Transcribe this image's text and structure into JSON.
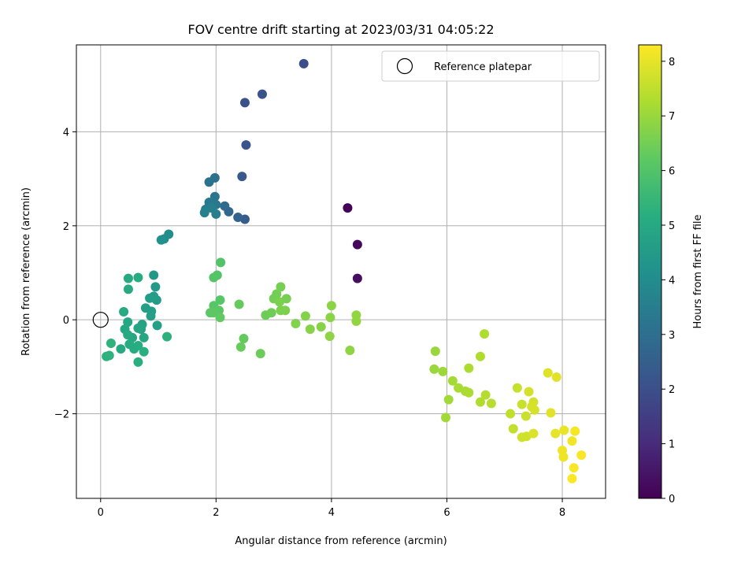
{
  "chart_data": {
    "type": "scatter",
    "title": "FOV centre drift starting at 2023/03/31 04:05:22",
    "xlabel": "Angular distance from reference (arcmin)",
    "ylabel": "Rotation from reference (arcmin)",
    "xlim": [
      -0.42,
      8.75
    ],
    "ylim": [
      -3.8,
      5.85
    ],
    "xticks": [
      0,
      2,
      4,
      6,
      8
    ],
    "yticks": [
      -2,
      0,
      2,
      4
    ],
    "xtick_labels": [
      "0",
      "2",
      "4",
      "6",
      "8"
    ],
    "ytick_labels": [
      "−2",
      "0",
      "2",
      "4"
    ],
    "grid": true,
    "legend": {
      "position": "top-right",
      "entries": [
        "Reference platepar"
      ]
    },
    "reference_point": {
      "x": 0,
      "y": 0
    },
    "colorbar": {
      "label": "Hours from first FF file",
      "range": [
        0,
        8.3
      ],
      "ticks": [
        0,
        1,
        2,
        3,
        4,
        5,
        6,
        7,
        8
      ],
      "tick_labels": [
        "0",
        "1",
        "2",
        "3",
        "4",
        "5",
        "6",
        "7",
        "8"
      ],
      "colormap": "viridis"
    },
    "series": [
      {
        "points": [
          [
            4.28,
            2.38,
            0.05
          ],
          [
            4.45,
            1.6,
            0.2
          ],
          [
            4.45,
            0.88,
            0.3
          ],
          [
            3.52,
            5.45,
            2.0
          ],
          [
            2.5,
            4.62,
            2.05
          ],
          [
            2.8,
            4.8,
            2.1
          ],
          [
            2.52,
            3.72,
            2.15
          ],
          [
            2.45,
            3.05,
            2.3
          ],
          [
            2.5,
            2.14,
            2.4
          ],
          [
            2.38,
            2.18,
            2.6
          ],
          [
            2.22,
            2.3,
            2.75
          ],
          [
            2.15,
            2.42,
            2.85
          ],
          [
            1.98,
            3.02,
            3.0
          ],
          [
            1.88,
            2.93,
            3.1
          ],
          [
            1.98,
            2.62,
            3.2
          ],
          [
            2.0,
            2.45,
            3.3
          ],
          [
            1.88,
            2.5,
            3.35
          ],
          [
            1.82,
            2.35,
            3.4
          ],
          [
            2.0,
            2.25,
            3.5
          ],
          [
            1.92,
            2.38,
            3.55
          ],
          [
            1.8,
            2.28,
            3.6
          ],
          [
            1.18,
            1.82,
            4.0
          ],
          [
            1.1,
            1.72,
            4.05
          ],
          [
            1.05,
            1.7,
            4.1
          ],
          [
            0.92,
            0.95,
            4.4
          ],
          [
            0.95,
            0.7,
            4.45
          ],
          [
            0.97,
            0.42,
            4.5
          ],
          [
            0.92,
            0.5,
            4.55
          ],
          [
            0.85,
            0.46,
            4.6
          ],
          [
            0.88,
            0.18,
            4.6
          ],
          [
            0.78,
            0.25,
            4.65
          ],
          [
            0.87,
            0.08,
            4.7
          ],
          [
            0.98,
            -0.12,
            4.75
          ],
          [
            0.72,
            -0.1,
            4.75
          ],
          [
            0.7,
            -0.2,
            4.8
          ],
          [
            0.65,
            -0.18,
            4.85
          ],
          [
            0.75,
            -0.38,
            4.9
          ],
          [
            0.55,
            -0.38,
            4.9
          ],
          [
            0.47,
            -0.05,
            4.95
          ],
          [
            0.42,
            -0.2,
            4.95
          ],
          [
            0.4,
            0.17,
            5.0
          ],
          [
            0.47,
            -0.32,
            5.0
          ],
          [
            0.35,
            -0.62,
            5.05
          ],
          [
            0.5,
            -0.52,
            5.1
          ],
          [
            0.58,
            -0.62,
            5.1
          ],
          [
            0.65,
            -0.55,
            5.15
          ],
          [
            0.75,
            -0.68,
            5.2
          ],
          [
            0.65,
            -0.9,
            5.2
          ],
          [
            0.48,
            0.65,
            5.0
          ],
          [
            0.48,
            0.88,
            5.05
          ],
          [
            0.65,
            0.9,
            5.1
          ],
          [
            1.15,
            -0.36,
            5.25
          ],
          [
            0.1,
            -0.78,
            5.3
          ],
          [
            0.15,
            -0.76,
            5.3
          ],
          [
            0.18,
            -0.5,
            5.35
          ],
          [
            2.08,
            1.22,
            6.0
          ],
          [
            2.02,
            0.95,
            6.0
          ],
          [
            1.96,
            0.9,
            6.05
          ],
          [
            2.07,
            0.42,
            6.1
          ],
          [
            1.96,
            0.3,
            6.1
          ],
          [
            2.05,
            0.2,
            6.15
          ],
          [
            1.95,
            0.15,
            6.2
          ],
          [
            1.9,
            0.15,
            6.2
          ],
          [
            2.07,
            0.05,
            6.25
          ],
          [
            2.4,
            0.33,
            6.3
          ],
          [
            2.48,
            -0.4,
            6.3
          ],
          [
            2.43,
            -0.58,
            6.35
          ],
          [
            2.77,
            -0.72,
            6.4
          ],
          [
            2.86,
            0.1,
            6.4
          ],
          [
            2.96,
            0.15,
            6.45
          ],
          [
            3.0,
            0.45,
            6.5
          ],
          [
            3.05,
            0.55,
            6.5
          ],
          [
            3.12,
            0.7,
            6.55
          ],
          [
            3.22,
            0.45,
            6.55
          ],
          [
            3.1,
            0.38,
            6.6
          ],
          [
            3.12,
            0.2,
            6.6
          ],
          [
            3.2,
            0.2,
            6.65
          ],
          [
            3.38,
            -0.08,
            6.7
          ],
          [
            3.55,
            0.08,
            6.7
          ],
          [
            3.63,
            -0.2,
            6.75
          ],
          [
            3.82,
            -0.15,
            6.75
          ],
          [
            4.0,
            0.3,
            6.8
          ],
          [
            3.98,
            0.05,
            6.8
          ],
          [
            3.97,
            -0.35,
            6.85
          ],
          [
            4.32,
            -0.65,
            6.85
          ],
          [
            4.43,
            0.1,
            6.9
          ],
          [
            4.43,
            -0.03,
            6.9
          ],
          [
            5.8,
            -0.67,
            7.0
          ],
          [
            5.78,
            -1.05,
            7.0
          ],
          [
            5.93,
            -1.1,
            7.05
          ],
          [
            6.03,
            -1.7,
            7.1
          ],
          [
            5.98,
            -2.08,
            7.1
          ],
          [
            6.1,
            -1.3,
            7.15
          ],
          [
            6.2,
            -1.45,
            7.2
          ],
          [
            6.32,
            -1.52,
            7.2
          ],
          [
            6.38,
            -1.55,
            7.25
          ],
          [
            6.38,
            -1.03,
            7.25
          ],
          [
            6.58,
            -0.78,
            7.3
          ],
          [
            6.65,
            -0.3,
            7.3
          ],
          [
            6.58,
            -1.75,
            7.3
          ],
          [
            6.67,
            -1.6,
            7.35
          ],
          [
            6.77,
            -1.78,
            7.4
          ],
          [
            7.1,
            -2.0,
            7.5
          ],
          [
            7.15,
            -2.32,
            7.55
          ],
          [
            7.22,
            -1.45,
            7.6
          ],
          [
            7.3,
            -1.8,
            7.6
          ],
          [
            7.37,
            -2.05,
            7.65
          ],
          [
            7.3,
            -2.5,
            7.7
          ],
          [
            7.38,
            -2.48,
            7.7
          ],
          [
            7.42,
            -1.53,
            7.75
          ],
          [
            7.5,
            -1.75,
            7.75
          ],
          [
            7.47,
            -1.85,
            7.8
          ],
          [
            7.52,
            -1.92,
            7.8
          ],
          [
            7.5,
            -2.42,
            7.85
          ],
          [
            7.75,
            -1.13,
            7.9
          ],
          [
            7.9,
            -1.22,
            7.95
          ],
          [
            7.8,
            -1.98,
            7.95
          ],
          [
            7.88,
            -2.42,
            8.0
          ],
          [
            8.03,
            -2.35,
            8.05
          ],
          [
            8.0,
            -2.78,
            8.1
          ],
          [
            8.02,
            -2.92,
            8.1
          ],
          [
            8.17,
            -2.58,
            8.15
          ],
          [
            8.22,
            -2.37,
            8.2
          ],
          [
            8.2,
            -3.15,
            8.25
          ],
          [
            8.33,
            -2.88,
            8.25
          ],
          [
            8.17,
            -3.38,
            8.3
          ]
        ]
      }
    ]
  }
}
